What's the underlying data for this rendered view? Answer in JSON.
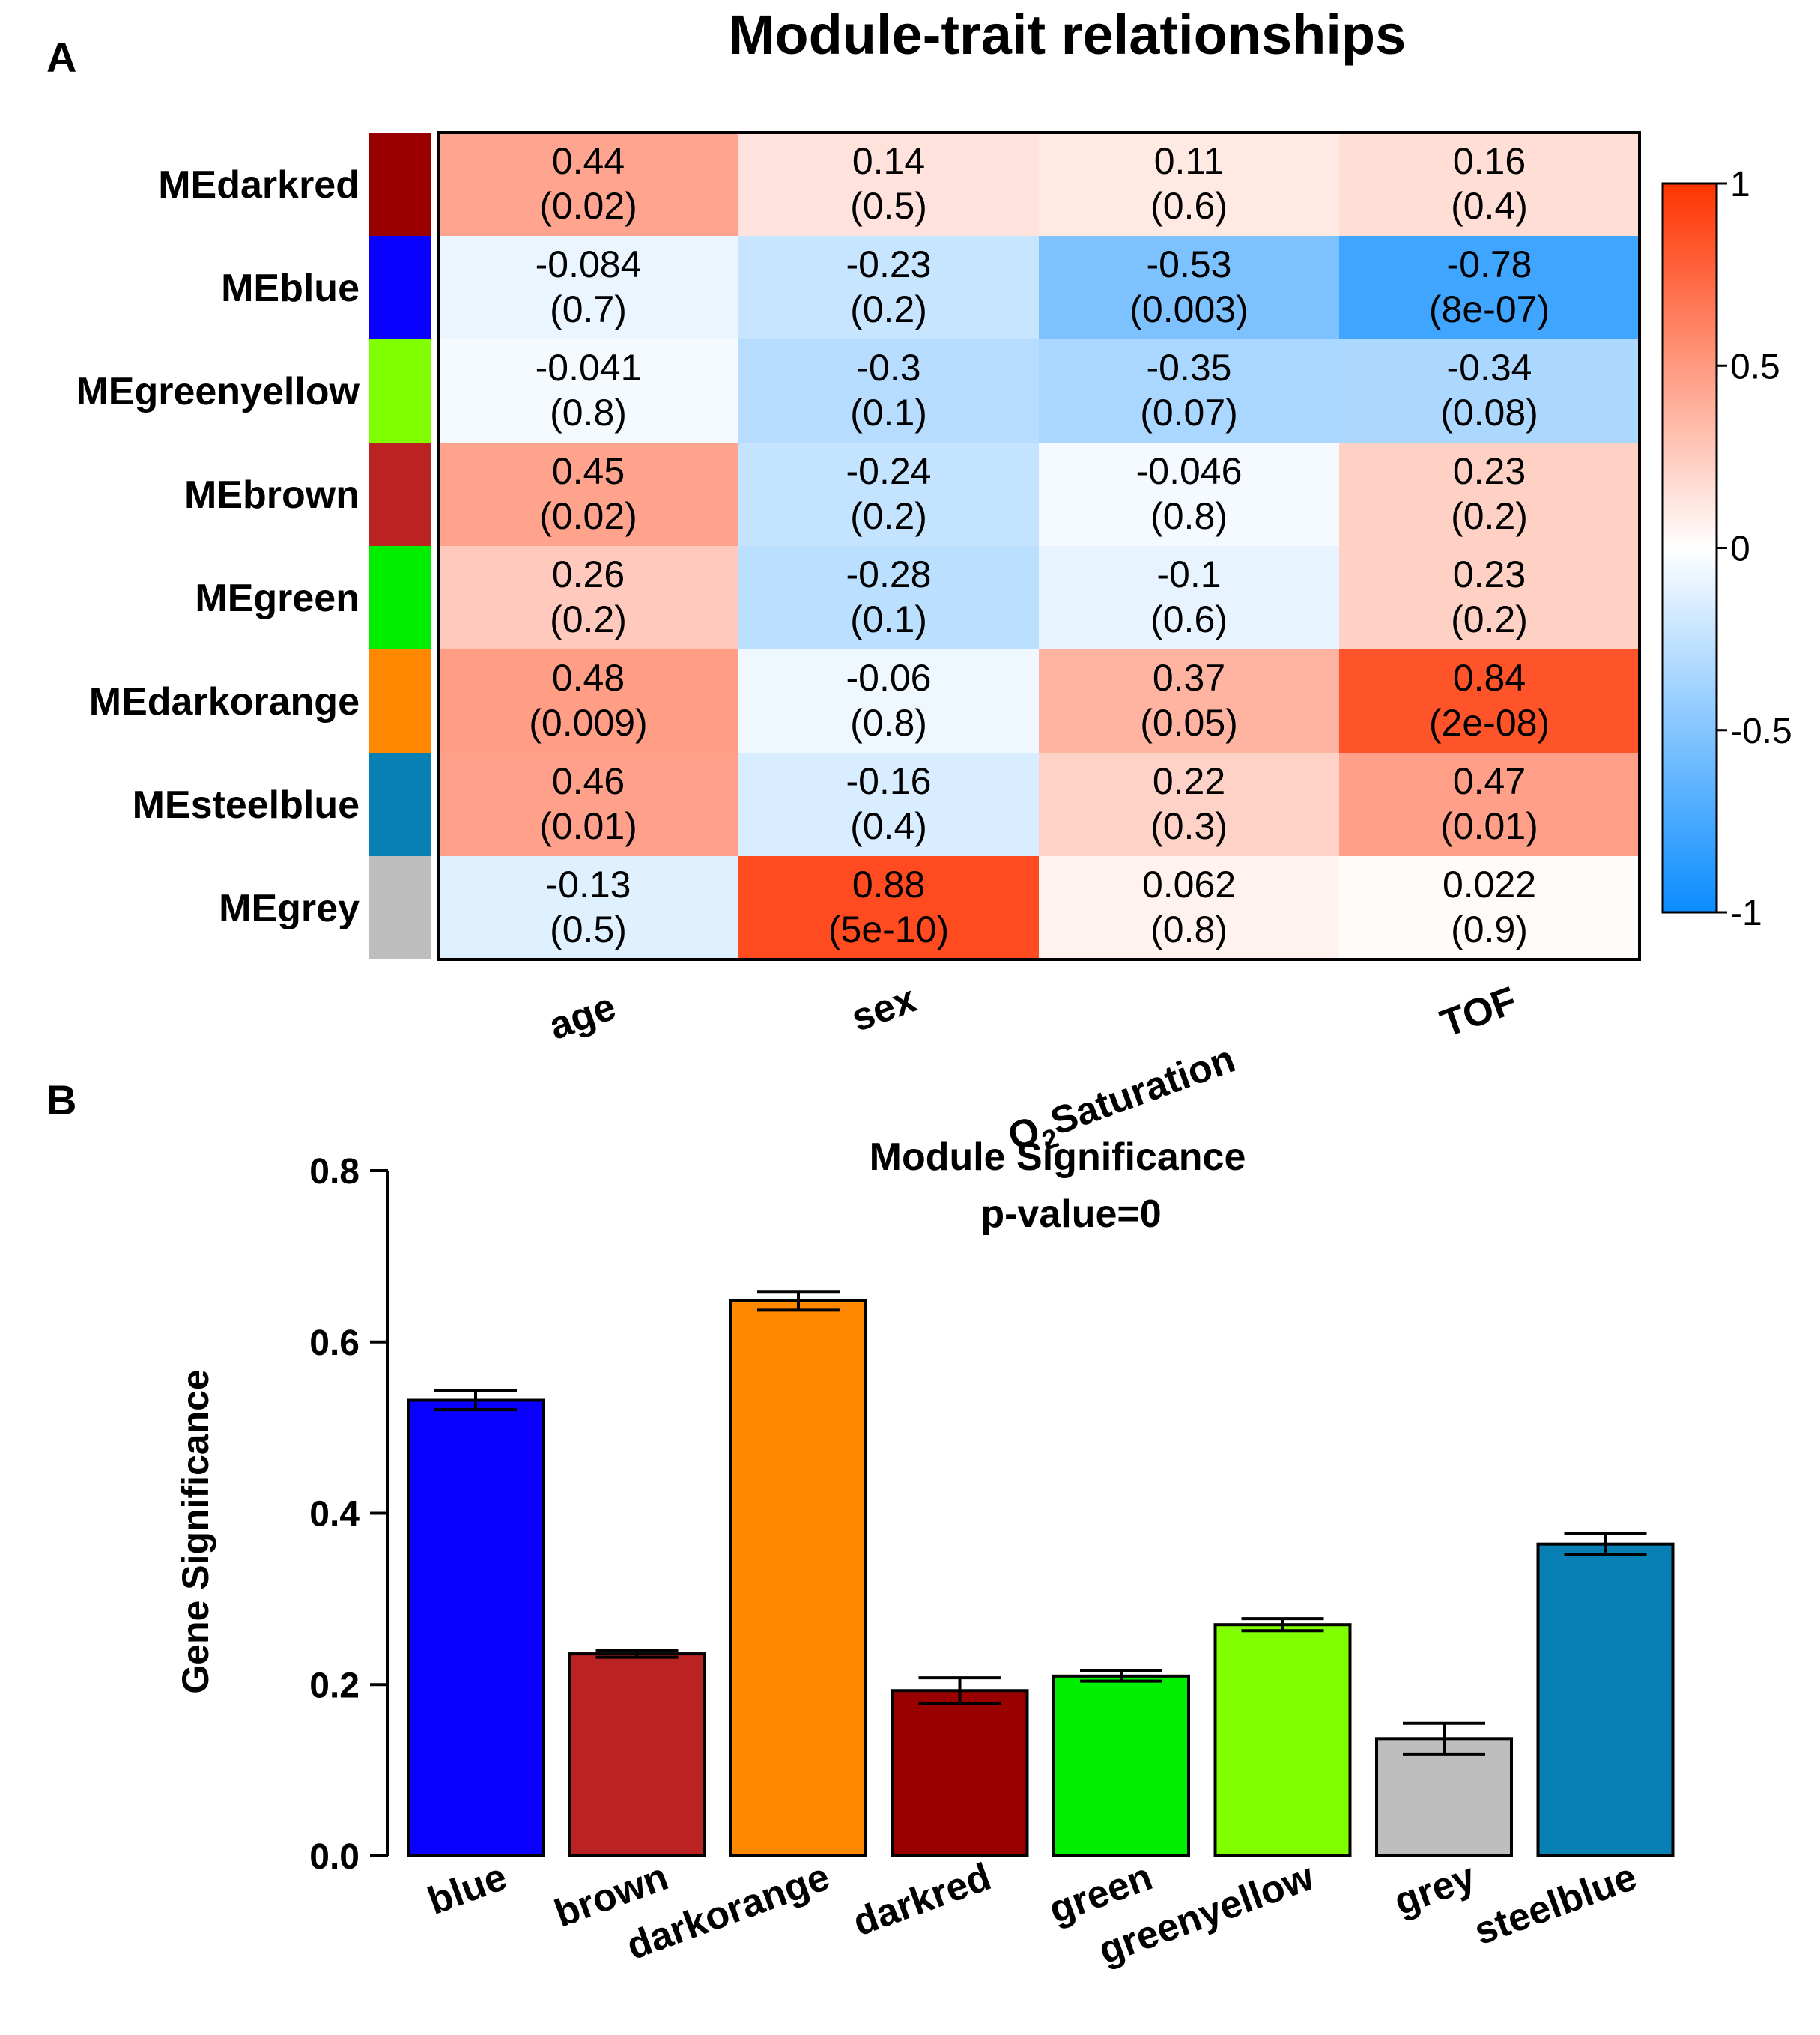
{
  "panel_a": {
    "label": "A",
    "chart_data": {
      "type": "heatmap",
      "title": "Module-trait relationships",
      "rows": [
        "MEdarkred",
        "MEblue",
        "MEgreenyellow",
        "MEbrown",
        "MEgreen",
        "MEdarkorange",
        "MEsteelblue",
        "MEgrey"
      ],
      "row_colors": [
        "#9b0000",
        "#0a00ff",
        "#7fff00",
        "#bb2222",
        "#00ee00",
        "#ff8800",
        "#0880b4",
        "#bebebe"
      ],
      "columns": [
        "age",
        "sex",
        "O2Saturation",
        "TOF"
      ],
      "column_labels": [
        {
          "main": "age"
        },
        {
          "main": "sex"
        },
        {
          "main": "O",
          "sub": "2",
          "rest": "Saturation"
        },
        {
          "main": "TOF"
        }
      ],
      "values": [
        [
          0.44,
          0.14,
          0.11,
          0.16
        ],
        [
          -0.084,
          -0.23,
          -0.53,
          -0.78
        ],
        [
          -0.041,
          -0.3,
          -0.35,
          -0.34
        ],
        [
          0.45,
          -0.24,
          -0.046,
          0.23
        ],
        [
          0.26,
          -0.28,
          -0.1,
          0.23
        ],
        [
          0.48,
          -0.06,
          0.37,
          0.84
        ],
        [
          0.46,
          -0.16,
          0.22,
          0.47
        ],
        [
          -0.13,
          0.88,
          0.062,
          0.022
        ]
      ],
      "value_labels": [
        [
          "0.44",
          "0.14",
          "0.11",
          "0.16"
        ],
        [
          "-0.084",
          "-0.23",
          "-0.53",
          "-0.78"
        ],
        [
          "-0.041",
          "-0.3",
          "-0.35",
          "-0.34"
        ],
        [
          "0.45",
          "-0.24",
          "-0.046",
          "0.23"
        ],
        [
          "0.26",
          "-0.28",
          "-0.1",
          "0.23"
        ],
        [
          "0.48",
          "-0.06",
          "0.37",
          "0.84"
        ],
        [
          "0.46",
          "-0.16",
          "0.22",
          "0.47"
        ],
        [
          "-0.13",
          "0.88",
          "0.062",
          "0.022"
        ]
      ],
      "pvalue_labels": [
        [
          "(0.02)",
          "(0.5)",
          "(0.6)",
          "(0.4)"
        ],
        [
          "(0.7)",
          "(0.2)",
          "(0.003)",
          "(8e-07)"
        ],
        [
          "(0.8)",
          "(0.1)",
          "(0.07)",
          "(0.08)"
        ],
        [
          "(0.02)",
          "(0.2)",
          "(0.8)",
          "(0.2)"
        ],
        [
          "(0.2)",
          "(0.1)",
          "(0.6)",
          "(0.2)"
        ],
        [
          "(0.009)",
          "(0.8)",
          "(0.05)",
          "(2e-08)"
        ],
        [
          "(0.01)",
          "(0.4)",
          "(0.3)",
          "(0.01)"
        ],
        [
          "(0.5)",
          "(5e-10)",
          "(0.8)",
          "(0.9)"
        ]
      ],
      "colorscale": {
        "min": -1,
        "max": 1,
        "low_color": "#0a8cff",
        "mid_color": "#ffffff",
        "high_color": "#ff3300"
      },
      "legend_ticks": [
        1,
        0.5,
        0,
        -0.5,
        -1
      ],
      "legend_tick_labels": [
        "1",
        "0.5",
        "0",
        "-0.5",
        "-1"
      ]
    }
  },
  "panel_b": {
    "label": "B",
    "chart_data": {
      "type": "bar",
      "title": "Module Significance",
      "subtitle": "p-value=0",
      "xlabel": "",
      "ylabel": "Gene Significance",
      "categories": [
        "blue",
        "brown",
        "darkorange",
        "darkred",
        "green",
        "greenyellow",
        "grey",
        "steelblue"
      ],
      "values": [
        0.532,
        0.236,
        0.648,
        0.193,
        0.21,
        0.27,
        0.137,
        0.364
      ],
      "errors": [
        0.011,
        0.004,
        0.011,
        0.015,
        0.006,
        0.007,
        0.018,
        0.012
      ],
      "bar_colors": [
        "#0a00ff",
        "#bb2222",
        "#ff8800",
        "#9b0000",
        "#00ee00",
        "#7fff00",
        "#bebebe",
        "#0880b4"
      ],
      "ylim": [
        0,
        0.8
      ],
      "yticks": [
        0.0,
        0.2,
        0.4,
        0.6,
        0.8
      ],
      "ytick_labels": [
        "0.0",
        "0.2",
        "0.4",
        "0.6",
        "0.8"
      ]
    }
  }
}
